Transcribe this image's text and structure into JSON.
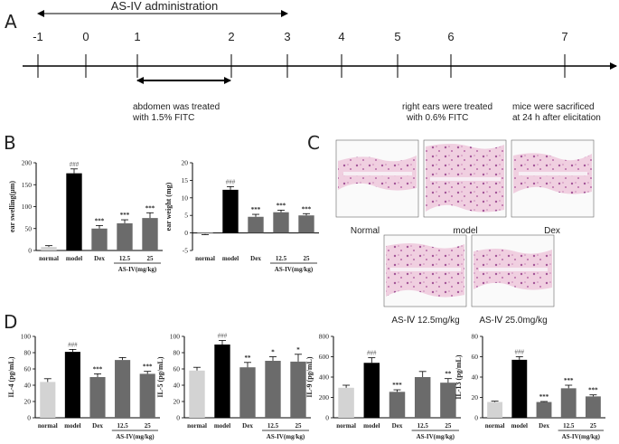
{
  "panel_labels": {
    "a": "A",
    "b": "B",
    "c": "C",
    "d": "D"
  },
  "timeline": {
    "administration_label": "AS-IV administration",
    "ticks": [
      "-1",
      "0",
      "1",
      "2",
      "3",
      "4",
      "5",
      "6",
      "7"
    ],
    "note_abdomen_1": "abdomen was treated",
    "note_abdomen_2": "with 1.5% FITC",
    "note_ear_1": "right ears were treated",
    "note_ear_2": "with 0.6% FITC",
    "note_sac_1": "mice were sacrificed",
    "note_sac_2": "at 24 h after elicitation"
  },
  "histology": {
    "labels": [
      "Normal",
      "model",
      "Dex",
      "AS-Ⅳ 12.5mg/kg",
      "AS-Ⅳ 25.0mg/kg"
    ]
  },
  "chart_data": [
    {
      "type": "bar",
      "panel": "B",
      "ylabel": "ear swelling(μm)",
      "categories": [
        "normal",
        "model",
        "Dex",
        "12.5",
        "25"
      ],
      "group_label": "AS-IV(mg/kg)",
      "values": [
        8,
        176,
        50,
        62,
        74
      ],
      "errors": [
        3,
        10,
        7,
        8,
        12
      ],
      "significance": [
        "",
        "###",
        "***",
        "***",
        "***"
      ],
      "ylim": [
        0,
        200
      ],
      "yticks": [
        "0",
        "50",
        "100",
        "150",
        "200"
      ]
    },
    {
      "type": "bar",
      "panel": "B",
      "ylabel": "ear weight (mg)",
      "categories": [
        "normal",
        "model",
        "Dex",
        "12.5",
        "25"
      ],
      "group_label": "AS-IV(mg/kg)",
      "values": [
        -0.3,
        12.3,
        4.6,
        5.9,
        5.0
      ],
      "errors": [
        0.2,
        0.9,
        0.7,
        0.6,
        0.5
      ],
      "significance": [
        "",
        "###",
        "***",
        "***",
        "***"
      ],
      "ylim": [
        -5,
        20
      ],
      "yticks": [
        "-5",
        "0",
        "5",
        "10",
        "15",
        "20"
      ]
    },
    {
      "type": "bar",
      "panel": "D",
      "ylabel": "IL-4 (pg/mL)",
      "categories": [
        "normal",
        "model",
        "Dex",
        "12.5",
        "25"
      ],
      "group_label": "AS-IV(mg/kg)",
      "values": [
        44,
        81,
        50,
        71,
        54
      ],
      "errors": [
        4,
        3,
        4,
        3,
        3
      ],
      "significance": [
        "",
        "###",
        "***",
        "",
        "***"
      ],
      "ylim": [
        0,
        100
      ],
      "yticks": [
        "0",
        "20",
        "40",
        "60",
        "80",
        "100"
      ]
    },
    {
      "type": "bar",
      "panel": "D",
      "ylabel": "IL-5 (pg/mL)",
      "categories": [
        "normal",
        "model",
        "Dex",
        "12.5",
        "25"
      ],
      "group_label": "AS-IV(mg/kg)",
      "values": [
        58,
        90,
        62,
        70,
        69
      ],
      "errors": [
        4,
        5,
        6,
        5,
        9
      ],
      "significance": [
        "",
        "###",
        "**",
        "*",
        "*"
      ],
      "ylim": [
        0,
        100
      ],
      "yticks": [
        "0",
        "20",
        "40",
        "60",
        "80",
        "100"
      ]
    },
    {
      "type": "bar",
      "panel": "D",
      "ylabel": "IL-9 (pg/mL)",
      "categories": [
        "normal",
        "model",
        "Dex",
        "12.5",
        "25"
      ],
      "group_label": "AS-IV(mg/kg)",
      "values": [
        295,
        540,
        255,
        400,
        345
      ],
      "errors": [
        25,
        50,
        20,
        55,
        40
      ],
      "significance": [
        "",
        "###",
        "***",
        "",
        "**"
      ],
      "ylim": [
        0,
        800
      ],
      "yticks": [
        "0",
        "200",
        "400",
        "600",
        "800"
      ]
    },
    {
      "type": "bar",
      "panel": "D",
      "ylabel": "IL-13 (pg/mL)",
      "categories": [
        "normal",
        "model",
        "Dex",
        "12.5",
        "25"
      ],
      "group_label": "AS-IV(mg/kg)",
      "values": [
        15.5,
        57,
        15.5,
        29,
        21
      ],
      "errors": [
        0.8,
        3,
        0.5,
        3,
        1.5
      ],
      "significance": [
        "",
        "###",
        "***",
        "***",
        "***"
      ],
      "ylim": [
        0,
        80
      ],
      "yticks": [
        "0",
        "20",
        "40",
        "60",
        "80"
      ]
    }
  ],
  "colors": {
    "normal": "#d3d3d3",
    "model": "#000000",
    "treated": "#6b6b6b",
    "tissue_pink": "#e6a9c8",
    "tissue_purple": "#b36aa6"
  }
}
